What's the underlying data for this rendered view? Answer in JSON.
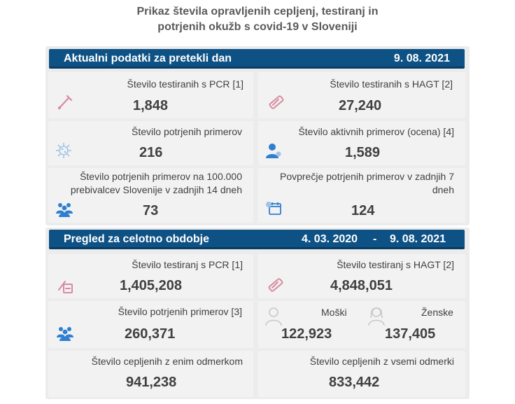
{
  "title": {
    "line1": "Prikaz števila opravljenih cepljenj, testiranj in",
    "line2": "potrjenih okužb s covid-19 v Sloveniji"
  },
  "daily": {
    "heading": "Aktualni podatki za pretekli dan",
    "date": "9. 08. 2021",
    "pcr_tests": {
      "label": "Število testiranih s PCR [1]",
      "value": "1,848"
    },
    "hagt_tests": {
      "label": "Število testiranih s HAGT [2]",
      "value": "27,240"
    },
    "confirmed": {
      "label": "Število potrjenih primerov",
      "value": "216"
    },
    "active": {
      "label": "Število aktivnih primerov (ocena) [4]",
      "value": "1,589"
    },
    "per100k": {
      "label_line1": "Število potrjenih primerov na 100.000",
      "label_line2": "prebivalcev Slovenije v zadnjih 14 dneh",
      "value": "73"
    },
    "avg7": {
      "label_line1": "Povprečje potrjenih primerov v zadnjih 7",
      "label_line2": "dneh",
      "value": "124"
    }
  },
  "overall": {
    "heading": "Pregled za celotno obdobje",
    "date_from": "4. 03. 2020",
    "dash": "-",
    "date_to": "9. 08. 2021",
    "pcr_tests": {
      "label": "Število testiranj s PCR [1]",
      "value": "1,405,208"
    },
    "hagt_tests": {
      "label": "Število testiranj s HAGT [2]",
      "value": "4,848,051"
    },
    "confirmed": {
      "label": "Število potrjenih primerov [3]",
      "value": "260,371"
    },
    "male": {
      "label": "Moški",
      "value": "122,923"
    },
    "female": {
      "label": "Ženske",
      "value": "137,405"
    },
    "one_dose": {
      "label": "Število cepljenih z enim odmerkom",
      "value": "941,238"
    },
    "all_doses": {
      "label": "Število cepljenih z vsemi odmerki",
      "value": "833,442"
    }
  },
  "colors": {
    "banner": "#0e5285",
    "panel": "#ececec",
    "card": "#f2f2f2",
    "icon_pink": "#d98aa0",
    "icon_blue": "#2f7fd0",
    "icon_gray": "#c8c8c8"
  }
}
